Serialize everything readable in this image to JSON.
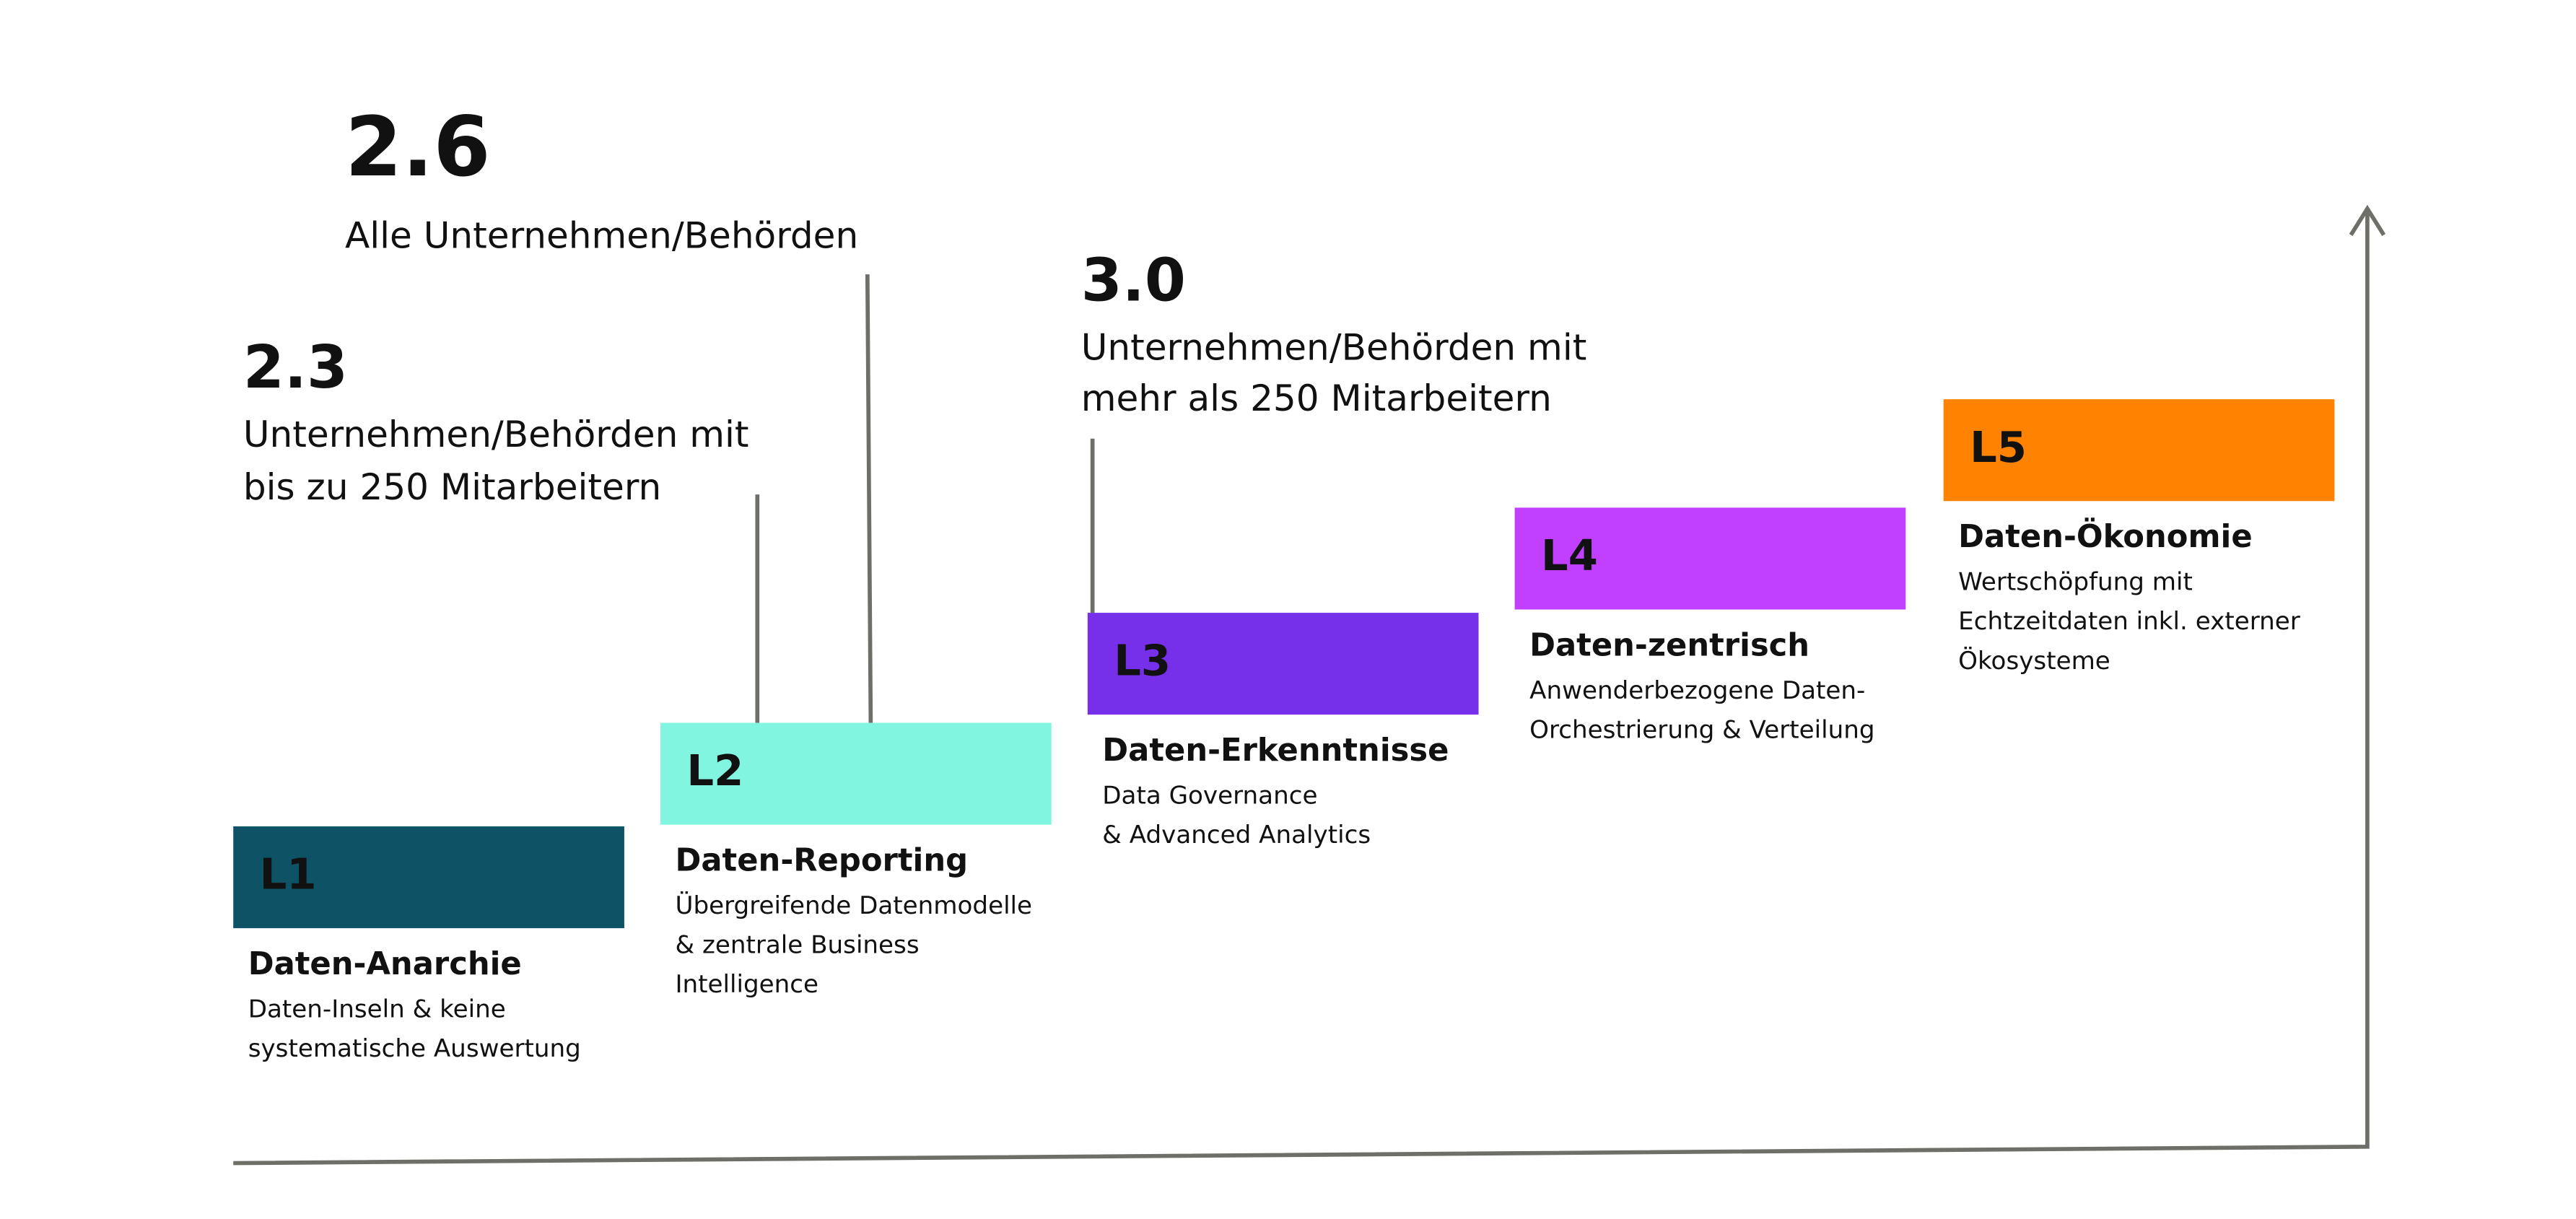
{
  "callouts": [
    {
      "value": "2.6",
      "lines": [
        "Alle Unternehmen/Behörden"
      ]
    },
    {
      "value": "2.3",
      "lines": [
        "Unternehmen/Behörden mit",
        "bis zu 250 Mitarbeitern"
      ]
    },
    {
      "value": "3.0",
      "lines": [
        "Unternehmen/Behörden mit",
        "mehr als 250 Mitarbeitern"
      ]
    }
  ],
  "levels": [
    {
      "label": "L1",
      "title": "Daten-Anarchie",
      "description": [
        "Daten-Inseln & keine",
        "systematische Auswertung"
      ]
    },
    {
      "label": "L2",
      "title": "Daten-Reporting",
      "description": [
        "Übergreifende Datenmodelle",
        "& zentrale Business",
        "Intelligence"
      ]
    },
    {
      "label": "L3",
      "title": "Daten-Erkenntnisse",
      "description": [
        "Data Governance",
        "& Advanced Analytics"
      ]
    },
    {
      "label": "L4",
      "title": "Daten-zentrisch",
      "description": [
        "Anwenderbezogene Daten-",
        "Orchestrierung & Verteilung"
      ]
    },
    {
      "label": "L5",
      "title": "Daten-Ökonomie",
      "description": [
        "Wertschöpfung mit",
        "Echtzeitdaten inkl. externer",
        "Ökosysteme"
      ]
    }
  ]
}
